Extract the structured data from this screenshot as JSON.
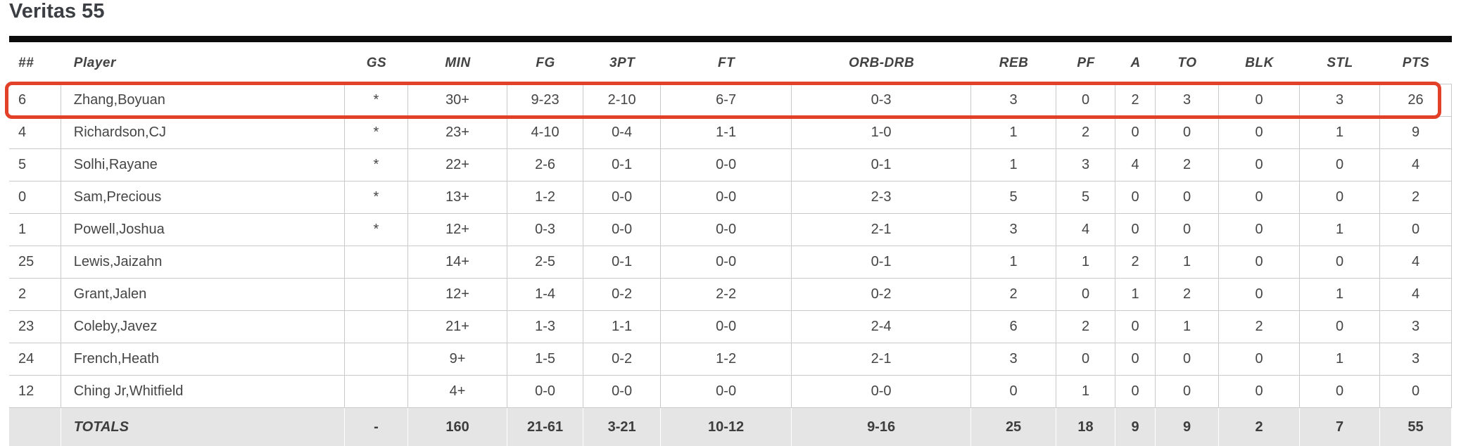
{
  "title": "Veritas 55",
  "colors": {
    "highlight_border": "#e24028",
    "top_bar": "#0c0c0c",
    "totals_background": "#e5e5e5",
    "divider": "#c9c9c9",
    "text": "#454545"
  },
  "table": {
    "headers": [
      "##",
      "Player",
      "GS",
      "MIN",
      "FG",
      "3PT",
      "FT",
      "ORB-DRB",
      "REB",
      "PF",
      "A",
      "TO",
      "BLK",
      "STL",
      "PTS"
    ],
    "highlight_row_index": 0,
    "rows": [
      [
        "6",
        "Zhang,Boyuan",
        "*",
        "30+",
        "9-23",
        "2-10",
        "6-7",
        "0-3",
        "3",
        "0",
        "2",
        "3",
        "0",
        "3",
        "26"
      ],
      [
        "4",
        "Richardson,CJ",
        "*",
        "23+",
        "4-10",
        "0-4",
        "1-1",
        "1-0",
        "1",
        "2",
        "0",
        "0",
        "0",
        "1",
        "9"
      ],
      [
        "5",
        "Solhi,Rayane",
        "*",
        "22+",
        "2-6",
        "0-1",
        "0-0",
        "0-1",
        "1",
        "3",
        "4",
        "2",
        "0",
        "0",
        "4"
      ],
      [
        "0",
        "Sam,Precious",
        "*",
        "13+",
        "1-2",
        "0-0",
        "0-0",
        "2-3",
        "5",
        "5",
        "0",
        "0",
        "0",
        "0",
        "2"
      ],
      [
        "1",
        "Powell,Joshua",
        "*",
        "12+",
        "0-3",
        "0-0",
        "0-0",
        "2-1",
        "3",
        "4",
        "0",
        "0",
        "0",
        "1",
        "0"
      ],
      [
        "25",
        "Lewis,Jaizahn",
        "",
        "14+",
        "2-5",
        "0-1",
        "0-0",
        "0-1",
        "1",
        "1",
        "2",
        "1",
        "0",
        "0",
        "4"
      ],
      [
        "2",
        "Grant,Jalen",
        "",
        "12+",
        "1-4",
        "0-2",
        "2-2",
        "0-2",
        "2",
        "0",
        "1",
        "2",
        "0",
        "1",
        "4"
      ],
      [
        "23",
        "Coleby,Javez",
        "",
        "21+",
        "1-3",
        "1-1",
        "0-0",
        "2-4",
        "6",
        "2",
        "0",
        "1",
        "2",
        "0",
        "3"
      ],
      [
        "24",
        "French,Heath",
        "",
        "9+",
        "1-5",
        "0-2",
        "1-2",
        "2-1",
        "3",
        "0",
        "0",
        "0",
        "0",
        "1",
        "3"
      ],
      [
        "12",
        "Ching Jr,Whitfield",
        "",
        "4+",
        "0-0",
        "0-0",
        "0-0",
        "0-0",
        "0",
        "1",
        "0",
        "0",
        "0",
        "0",
        "0"
      ]
    ],
    "totals": [
      "",
      "TOTALS",
      "-",
      "160",
      "21-61",
      "3-21",
      "10-12",
      "9-16",
      "25",
      "18",
      "9",
      "9",
      "2",
      "7",
      "55"
    ]
  }
}
